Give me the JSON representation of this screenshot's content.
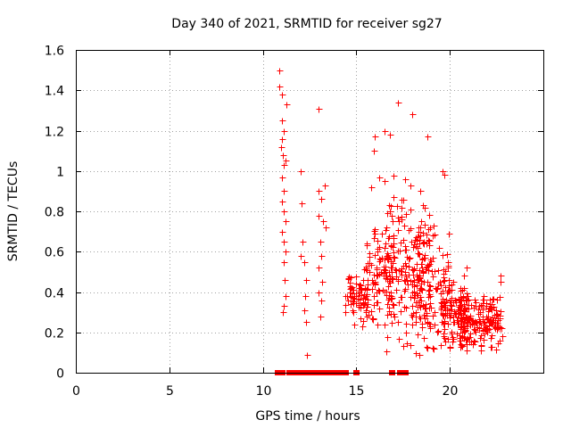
{
  "chart_data": {
    "type": "scatter",
    "title": "Day 340 of 2021, SRMTID for receiver sg27",
    "xlabel": "GPS time / hours",
    "ylabel": "SRMTID / TECUs",
    "xlim": [
      0,
      25
    ],
    "ylim": [
      0,
      1.6
    ],
    "xticks": [
      "0",
      "5",
      "10",
      "15",
      "20"
    ],
    "yticks": [
      "0",
      "0.2",
      "0.4",
      "0.6",
      "0.8",
      "1",
      "1.2",
      "1.4",
      "1.6"
    ],
    "grid": true,
    "series": [
      {
        "name": "SRMTID",
        "marker": "plus",
        "color": "#ff0000",
        "points": [
          [
            10.9,
            1.5
          ],
          [
            10.9,
            1.42
          ],
          [
            11.0,
            1.38
          ],
          [
            11.0,
            1.25
          ],
          [
            11.1,
            1.2
          ],
          [
            11.0,
            1.16
          ],
          [
            10.95,
            1.12
          ],
          [
            11.05,
            1.08
          ],
          [
            11.1,
            1.03
          ],
          [
            11.2,
            1.05
          ],
          [
            11.0,
            0.97
          ],
          [
            11.1,
            0.9
          ],
          [
            11.0,
            0.85
          ],
          [
            11.1,
            0.8
          ],
          [
            11.2,
            0.75
          ],
          [
            11.0,
            0.7
          ],
          [
            11.1,
            0.65
          ],
          [
            11.2,
            0.6
          ],
          [
            11.1,
            0.55
          ],
          [
            11.15,
            0.46
          ],
          [
            11.2,
            0.38
          ],
          [
            11.1,
            0.33
          ],
          [
            11.05,
            0.3
          ],
          [
            11.25,
            1.33
          ],
          [
            12.0,
            1.0
          ],
          [
            12.05,
            0.84
          ],
          [
            12.1,
            0.65
          ],
          [
            12.0,
            0.58
          ],
          [
            12.2,
            0.55
          ],
          [
            12.3,
            0.46
          ],
          [
            12.25,
            0.38
          ],
          [
            12.2,
            0.31
          ],
          [
            12.3,
            0.25
          ],
          [
            12.35,
            0.09
          ],
          [
            13.0,
            1.31
          ],
          [
            13.0,
            0.9
          ],
          [
            13.1,
            0.86
          ],
          [
            13.3,
            0.93
          ],
          [
            13.0,
            0.78
          ],
          [
            13.2,
            0.75
          ],
          [
            13.35,
            0.72
          ],
          [
            13.05,
            0.65
          ],
          [
            13.1,
            0.58
          ],
          [
            13.0,
            0.52
          ],
          [
            13.15,
            0.45
          ],
          [
            13.0,
            0.4
          ],
          [
            13.1,
            0.36
          ],
          [
            13.05,
            0.28
          ]
        ],
        "zero_markers": [
          [
            10.8,
            0
          ],
          [
            11.0,
            0
          ],
          [
            11.4,
            0
          ],
          [
            11.5,
            0
          ],
          [
            11.6,
            0
          ],
          [
            11.7,
            0
          ],
          [
            11.8,
            0
          ],
          [
            11.9,
            0
          ],
          [
            12.0,
            0
          ],
          [
            12.1,
            0
          ],
          [
            12.3,
            0
          ],
          [
            12.6,
            0
          ],
          [
            12.8,
            0
          ],
          [
            13.0,
            0
          ],
          [
            13.2,
            0
          ],
          [
            13.4,
            0
          ],
          [
            13.6,
            0
          ],
          [
            13.8,
            0
          ],
          [
            14.0,
            0
          ],
          [
            14.2,
            0
          ],
          [
            14.4,
            0
          ],
          [
            15.0,
            0
          ],
          [
            16.9,
            0
          ],
          [
            17.3,
            0
          ],
          [
            17.5,
            0
          ],
          [
            17.6,
            0
          ]
        ],
        "dense_regions": [
          {
            "x_range": [
              14.4,
              15.6
            ],
            "y_range": [
              0.2,
              0.55
            ],
            "count": 70
          },
          {
            "x_range": [
              15.5,
              17.0
            ],
            "y_range": [
              0.2,
              0.8
            ],
            "count": 110
          },
          {
            "x_range": [
              16.5,
              17.5
            ],
            "y_range": [
              0.0,
              1.0
            ],
            "count": 60
          },
          {
            "x_range": [
              17.5,
              19.0
            ],
            "y_range": [
              0.1,
              0.9
            ],
            "count": 110
          },
          {
            "x_range": [
              18.0,
              20.0
            ],
            "y_range": [
              0.05,
              0.8
            ],
            "count": 110
          },
          {
            "x_range": [
              19.5,
              21.0
            ],
            "y_range": [
              0.1,
              0.5
            ],
            "count": 110
          },
          {
            "x_range": [
              20.5,
              22.8
            ],
            "y_range": [
              0.1,
              0.4
            ],
            "count": 170
          }
        ],
        "sparse_high": [
          [
            16.0,
            1.17
          ],
          [
            15.95,
            1.1
          ],
          [
            16.5,
            1.2
          ],
          [
            16.8,
            1.18
          ],
          [
            17.2,
            1.34
          ],
          [
            18.0,
            1.28
          ],
          [
            18.8,
            1.17
          ],
          [
            19.6,
            1.0
          ],
          [
            19.7,
            0.98
          ],
          [
            17.9,
            0.93
          ],
          [
            17.0,
            0.87
          ],
          [
            16.2,
            0.97
          ],
          [
            16.5,
            0.95
          ],
          [
            15.8,
            0.92
          ],
          [
            17.6,
            0.96
          ],
          [
            18.4,
            0.9
          ],
          [
            14.55,
            0.47
          ],
          [
            22.7,
            0.48
          ],
          [
            22.7,
            0.45
          ],
          [
            20.9,
            0.52
          ]
        ]
      }
    ]
  }
}
